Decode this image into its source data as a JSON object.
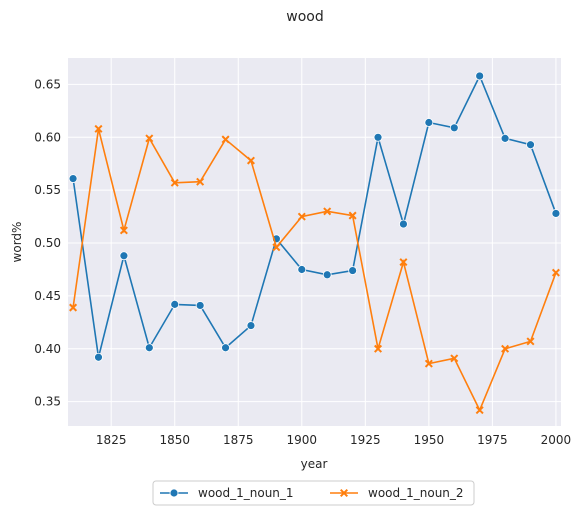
{
  "chart_data": {
    "type": "line",
    "title": "wood",
    "xlabel": "year",
    "ylabel": "word%",
    "x": [
      1810,
      1820,
      1830,
      1840,
      1850,
      1860,
      1870,
      1880,
      1890,
      1900,
      1910,
      1920,
      1930,
      1940,
      1950,
      1960,
      1970,
      1980,
      1990,
      2000
    ],
    "xlim": [
      1808,
      2002
    ],
    "ylim": [
      0.327,
      0.675
    ],
    "xticks": [
      1825,
      1850,
      1875,
      1900,
      1925,
      1950,
      1975,
      2000
    ],
    "yticks": [
      0.35,
      0.4,
      0.45,
      0.5,
      0.55,
      0.6,
      0.65
    ],
    "grid": true,
    "legend_position": "bottom-center",
    "series": [
      {
        "name": "wood_1_noun_1",
        "color": "#1f77b4",
        "marker": "circle",
        "values": [
          0.561,
          0.392,
          0.488,
          0.401,
          0.442,
          0.441,
          0.401,
          0.422,
          0.504,
          0.475,
          0.47,
          0.474,
          0.6,
          0.518,
          0.614,
          0.609,
          0.658,
          0.599,
          0.593,
          0.528
        ]
      },
      {
        "name": "wood_1_noun_2",
        "color": "#ff7f0e",
        "marker": "x",
        "values": [
          0.439,
          0.608,
          0.512,
          0.599,
          0.557,
          0.558,
          0.598,
          0.578,
          0.496,
          0.525,
          0.53,
          0.526,
          0.4,
          0.482,
          0.386,
          0.391,
          0.342,
          0.4,
          0.407,
          0.472
        ]
      }
    ]
  }
}
